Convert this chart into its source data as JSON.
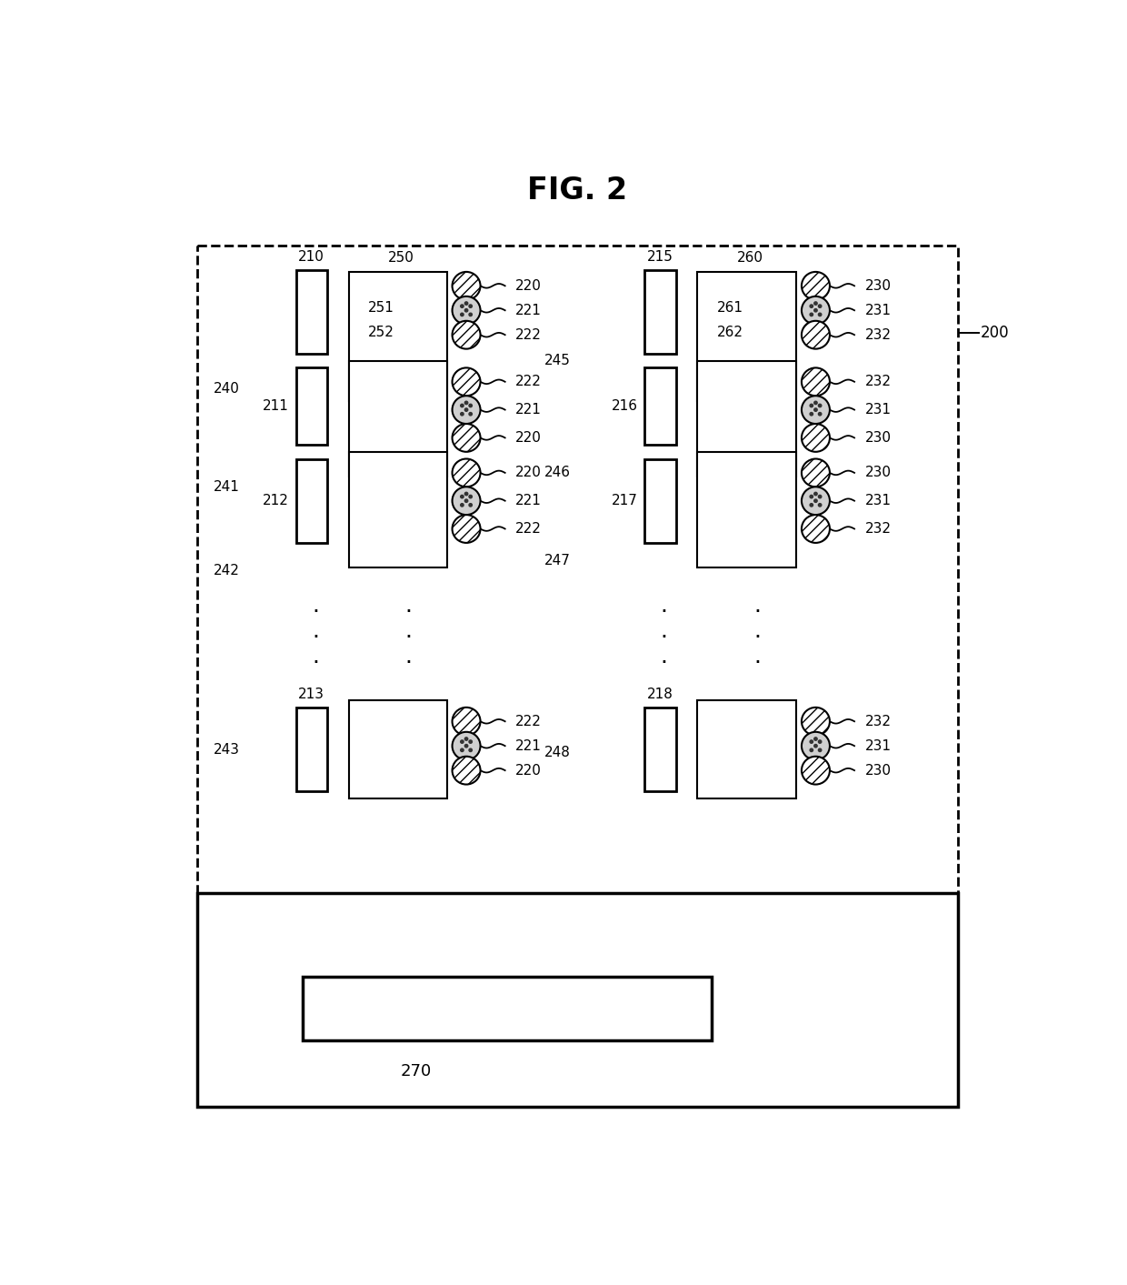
{
  "title": "FIG. 2",
  "bg_color": "#ffffff",
  "line_color": "#000000"
}
